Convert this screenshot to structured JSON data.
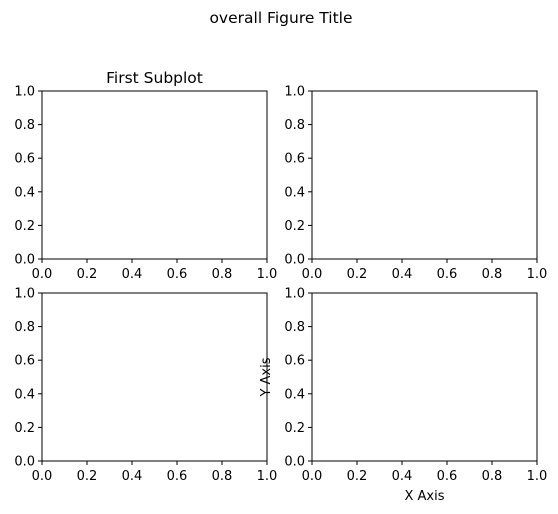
{
  "figure": {
    "title": "overall Figure Title"
  },
  "chart_data": [
    {
      "type": "scatter",
      "position": "top-left",
      "title": "First Subplot",
      "xlabel": "",
      "ylabel": "",
      "xlim": [
        0,
        1
      ],
      "ylim": [
        0,
        1
      ],
      "xticks": [
        "0.0",
        "0.2",
        "0.4",
        "0.6",
        "0.8",
        "1.0"
      ],
      "yticks": [
        "0.0",
        "0.2",
        "0.4",
        "0.6",
        "0.8",
        "1.0"
      ],
      "grid": false,
      "series": []
    },
    {
      "type": "scatter",
      "position": "top-right",
      "title": "",
      "xlabel": "",
      "ylabel": "",
      "xlim": [
        0,
        1
      ],
      "ylim": [
        0,
        1
      ],
      "xticks": [
        "0.0",
        "0.2",
        "0.4",
        "0.6",
        "0.8",
        "1.0"
      ],
      "yticks": [
        "0.0",
        "0.2",
        "0.4",
        "0.6",
        "0.8",
        "1.0"
      ],
      "grid": false,
      "series": []
    },
    {
      "type": "scatter",
      "position": "bottom-left",
      "title": "",
      "xlabel": "",
      "ylabel": "",
      "xlim": [
        0,
        1
      ],
      "ylim": [
        0,
        1
      ],
      "xticks": [
        "0.0",
        "0.2",
        "0.4",
        "0.6",
        "0.8",
        "1.0"
      ],
      "yticks": [
        "0.0",
        "0.2",
        "0.4",
        "0.6",
        "0.8",
        "1.0"
      ],
      "grid": false,
      "series": []
    },
    {
      "type": "scatter",
      "position": "bottom-right",
      "title": "",
      "xlabel": "X Axis",
      "ylabel": "Y Axis",
      "xlim": [
        0,
        1
      ],
      "ylim": [
        0,
        1
      ],
      "xticks": [
        "0.0",
        "0.2",
        "0.4",
        "0.6",
        "0.8",
        "1.0"
      ],
      "yticks": [
        "0.0",
        "0.2",
        "0.4",
        "0.6",
        "0.8",
        "1.0"
      ],
      "grid": false,
      "series": []
    }
  ]
}
